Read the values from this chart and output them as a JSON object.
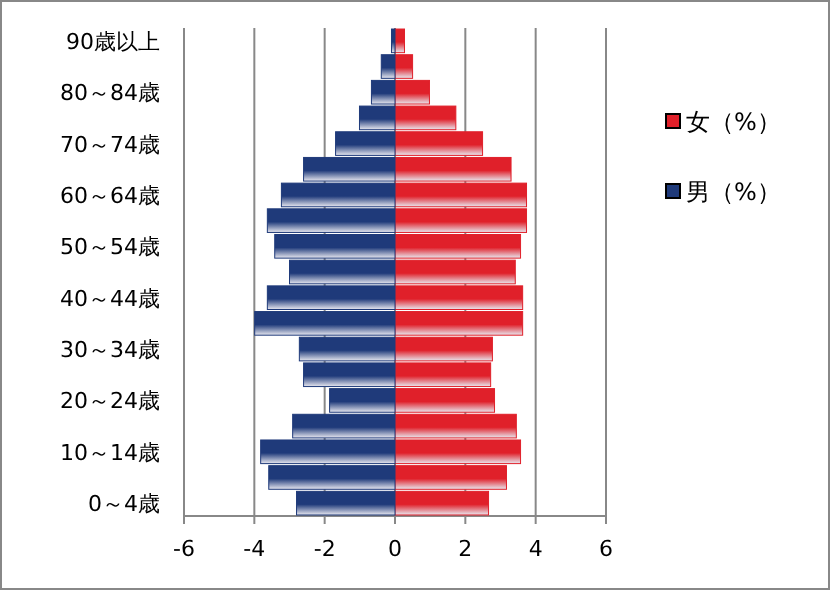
{
  "chart_data": {
    "type": "bar",
    "orientation": "horizontal",
    "categories": [
      "90歳以上",
      null,
      "80～84歳",
      null,
      "70～74歳",
      null,
      "60～64歳",
      null,
      "50～54歳",
      null,
      "40～44歳",
      null,
      "30～34歳",
      null,
      "20～24歳",
      null,
      "10～14歳",
      null,
      "0～4歳"
    ],
    "series": [
      {
        "name": "女（%）",
        "color": "#e0202a",
        "values": [
          0.27,
          0.5,
          0.98,
          1.73,
          2.49,
          3.3,
          3.74,
          3.74,
          3.57,
          3.42,
          3.63,
          3.63,
          2.77,
          2.72,
          2.83,
          3.45,
          3.57,
          3.17,
          2.66
        ]
      },
      {
        "name": "男（%）",
        "color": "#1f3a7a",
        "values": [
          -0.1,
          -0.39,
          -0.67,
          -1.01,
          -1.69,
          -2.6,
          -3.23,
          -3.63,
          -3.42,
          -3.0,
          -3.63,
          -3.99,
          -2.72,
          -2.6,
          -1.86,
          -2.91,
          -3.82,
          -3.59,
          -2.8
        ]
      }
    ],
    "stacked": true,
    "xlim": [
      -6,
      6
    ],
    "xticks": [
      -6,
      -4,
      -2,
      0,
      2,
      4,
      6
    ],
    "grid": "x",
    "legend": "right"
  }
}
